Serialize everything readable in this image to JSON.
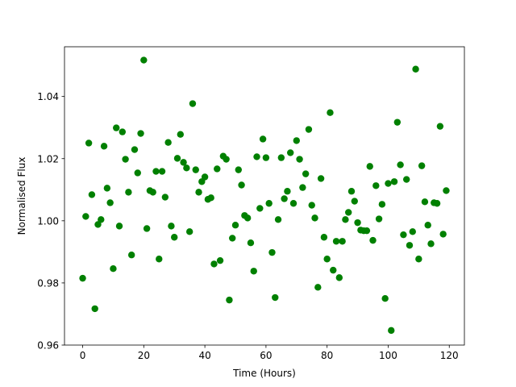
{
  "chart_data": {
    "type": "scatter",
    "x_label": "Time (Hours)",
    "y_label": "Normalised Flux",
    "color": "#008000",
    "x": [
      0,
      1,
      2,
      3,
      4,
      5,
      6,
      7,
      8,
      9,
      10,
      11,
      12,
      13,
      14,
      15,
      16,
      17,
      18,
      19,
      20,
      21,
      22,
      23,
      24,
      25,
      26,
      27,
      28,
      29,
      30,
      31,
      32,
      33,
      34,
      35,
      36,
      37,
      38,
      39,
      40,
      41,
      42,
      43,
      44,
      45,
      46,
      47,
      48,
      49,
      50,
      51,
      52,
      53,
      54,
      55,
      56,
      57,
      58,
      59,
      60,
      61,
      62,
      63,
      64,
      65,
      66,
      67,
      68,
      69,
      70,
      71,
      72,
      73,
      74,
      75,
      76,
      77,
      78,
      79,
      80,
      81,
      82,
      83,
      84,
      85,
      86,
      87,
      88,
      89,
      90,
      91,
      92,
      93,
      94,
      95,
      96,
      97,
      98,
      99,
      100,
      101,
      102,
      103,
      104,
      105,
      106,
      107,
      108,
      109,
      110,
      111,
      112,
      113,
      114,
      115,
      116,
      117,
      118,
      119
    ],
    "values": [
      0.9815,
      1.0014,
      1.025,
      1.0084,
      0.9717,
      0.9988,
      1.0004,
      1.024,
      1.0105,
      1.0058,
      0.9846,
      1.0299,
      0.9983,
      1.0286,
      1.0198,
      1.0092,
      0.989,
      1.0229,
      1.0154,
      1.0281,
      1.0517,
      0.9975,
      1.0097,
      1.0092,
      1.0159,
      0.9877,
      1.0159,
      1.0076,
      1.0252,
      0.9983,
      0.9947,
      1.0201,
      1.0278,
      1.0188,
      1.017,
      0.9965,
      1.0377,
      1.0164,
      1.0092,
      1.0126,
      1.0141,
      1.0069,
      1.0074,
      0.9861,
      1.0167,
      0.9872,
      1.0208,
      1.0198,
      0.9745,
      0.9944,
      0.9986,
      1.0164,
      1.0115,
      1.0017,
      1.0009,
      0.9929,
      0.9838,
      1.0206,
      1.004,
      1.0263,
      1.0203,
      1.0056,
      0.9898,
      0.9753,
      1.0004,
      1.0203,
      1.0071,
      1.0095,
      1.0219,
      1.0056,
      1.0258,
      1.0198,
      1.0107,
      1.0151,
      1.0294,
      1.005,
      1.0009,
      0.9786,
      1.0136,
      0.9947,
      0.9877,
      1.0348,
      0.9841,
      0.9934,
      0.9817,
      0.9934,
      1.0004,
      1.0027,
      1.0095,
      1.0063,
      0.9994,
      0.997,
      0.9968,
      0.9968,
      1.0175,
      0.9937,
      1.0113,
      1.0006,
      1.0053,
      0.975,
      1.012,
      0.9647,
      1.0126,
      1.0317,
      1.018,
      0.9955,
      1.0133,
      0.9921,
      0.9965,
      1.0488,
      0.9877,
      1.0177,
      1.0061,
      0.9986,
      0.9926,
      1.0058,
      1.0056,
      1.0304,
      0.9957,
      1.0097
    ],
    "xlim": [
      -5.95,
      124.95
    ],
    "ylim": [
      0.96,
      1.056
    ],
    "xticks": [
      0,
      20,
      40,
      60,
      80,
      100,
      120
    ],
    "yticks": [
      0.96,
      0.98,
      {
        "value": 1.0,
        "label": "1.00"
      },
      1.02,
      1.04
    ]
  }
}
